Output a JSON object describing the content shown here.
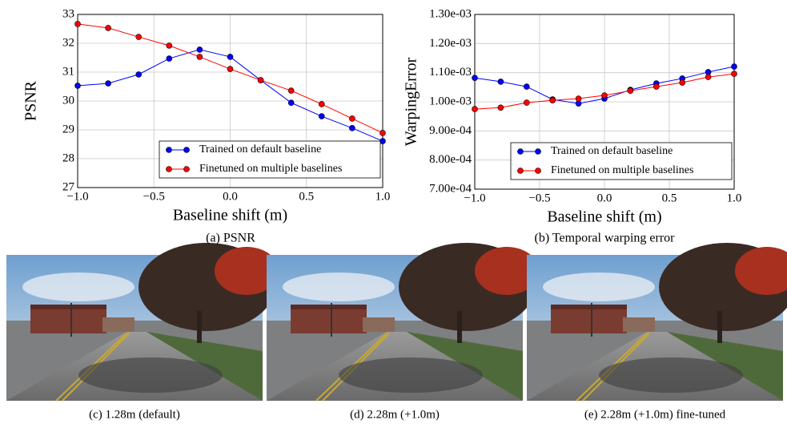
{
  "chart_data": [
    {
      "type": "line",
      "caption": "(a) PSNR",
      "xlabel": "Baseline shift (m)",
      "ylabel": "PSNR",
      "x": [
        -1.0,
        -0.8,
        -0.6,
        -0.4,
        -0.2,
        0.0,
        0.2,
        0.4,
        0.6,
        0.8,
        1.0
      ],
      "series": [
        {
          "name": "Trained on default baseline",
          "color": "#0000ff",
          "values": [
            30.53,
            30.61,
            30.92,
            31.47,
            31.78,
            31.53,
            30.72,
            29.94,
            29.47,
            29.06,
            28.61
          ]
        },
        {
          "name": "Finetuned on multiple baselines",
          "color": "#ff0000",
          "values": [
            32.67,
            32.53,
            32.22,
            31.92,
            31.53,
            31.11,
            30.72,
            30.36,
            29.89,
            29.39,
            28.89
          ]
        }
      ],
      "xlim": [
        -1.0,
        1.0
      ],
      "xticks": [
        {
          "value": -1.0,
          "label": "−1.0"
        },
        {
          "value": -0.5,
          "label": "−0.5"
        },
        {
          "value": 0.0,
          "label": "0.0"
        },
        {
          "value": 0.5,
          "label": "0.5"
        },
        {
          "value": 1.0,
          "label": "1.0"
        }
      ],
      "ylim": [
        27,
        33
      ],
      "yticks": [
        27,
        28,
        29,
        30,
        31,
        32,
        33
      ],
      "grid": true,
      "legend": "lower right"
    },
    {
      "type": "line",
      "caption": "(b) Temporal warping error",
      "xlabel": "Baseline shift (m)",
      "ylabel": "WarpingError",
      "x": [
        -1.0,
        -0.8,
        -0.6,
        -0.4,
        -0.2,
        0.0,
        0.2,
        0.4,
        0.6,
        0.8,
        1.0
      ],
      "series": [
        {
          "name": "Trained on default baseline",
          "color": "#0000ff",
          "values": [
            0.001082,
            0.001069,
            0.001052,
            0.001008,
            0.000994,
            0.001011,
            0.001041,
            0.001063,
            0.00108,
            0.001102,
            0.001121
          ]
        },
        {
          "name": "Finetuned on multiple baselines",
          "color": "#ff0000",
          "values": [
            0.000975,
            0.00098,
            0.000997,
            0.001005,
            0.001011,
            0.001022,
            0.001038,
            0.001052,
            0.001066,
            0.001085,
            0.001096
          ]
        }
      ],
      "xlim": [
        -1.0,
        1.0
      ],
      "xticks": [
        {
          "value": -1.0,
          "label": "−1.0"
        },
        {
          "value": -0.5,
          "label": "−0.5"
        },
        {
          "value": 0.0,
          "label": "0.0"
        },
        {
          "value": 0.5,
          "label": "0.5"
        },
        {
          "value": 1.0,
          "label": "1.0"
        }
      ],
      "ylim": [
        0.0007,
        0.0013
      ],
      "yticks": [
        {
          "value": 0.0007,
          "label": "7.00e-04"
        },
        {
          "value": 0.0008,
          "label": "8.00e-04"
        },
        {
          "value": 0.0009,
          "label": "9.00e-04"
        },
        {
          "value": 0.001,
          "label": "1.00e-03"
        },
        {
          "value": 0.0011,
          "label": "1.10e-03"
        },
        {
          "value": 0.0012,
          "label": "1.20e-03"
        },
        {
          "value": 0.0013,
          "label": "1.30e-03"
        }
      ],
      "grid": true,
      "legend": "lower right"
    }
  ],
  "images": [
    {
      "caption": "(c) 1.28m (default)"
    },
    {
      "caption": "(d) 2.28m (+1.0m)"
    },
    {
      "caption": "(e) 2.28m (+1.0m) fine-tuned"
    }
  ]
}
